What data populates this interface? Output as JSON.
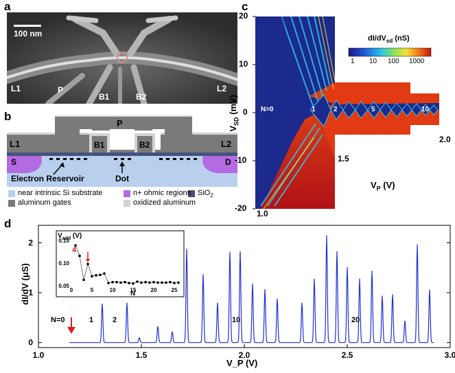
{
  "panels": {
    "a": "a",
    "b": "b",
    "c": "c",
    "d": "d"
  },
  "panel_a": {
    "scalebar": "100 nm",
    "labels": {
      "L1": "L1",
      "P": "P",
      "B1": "B1",
      "B2": "B2",
      "L2": "L2"
    }
  },
  "panel_b": {
    "gates": {
      "P": "P",
      "L1": "L1",
      "L2": "L2",
      "B1": "B1",
      "B2": "B2",
      "S": "S",
      "D": "D"
    },
    "reservoir": "Electron Reservoir",
    "dot": "Dot",
    "legend": [
      {
        "label": "near intrinsic Si substrate",
        "color": "#b8d0ee"
      },
      {
        "label": "n+ ohmic regions",
        "color": "#b36ae2"
      },
      {
        "label": "SiO",
        "sub": "2",
        "color": "#44527d"
      },
      {
        "label": "aluminum  gates",
        "color": "#7a7a7a"
      },
      {
        "label": "oxidized aluminum",
        "color": "#d3d3d3"
      }
    ]
  },
  "panel_c": {
    "ylabel": "V",
    "ylabel_sub": "SD",
    "ylabel_unit": " (mV)",
    "xlabel": "V",
    "xlabel_sub": "P",
    "xlabel_unit": " (V)",
    "yticks": [
      "20",
      "10",
      "0",
      "-10",
      "-20"
    ],
    "corner_labels": {
      "v1": "1.0",
      "v15": "1.5",
      "v2": "2.0"
    },
    "diamond_labels": [
      "N=0",
      "1",
      "2",
      "5",
      "10"
    ],
    "colorbar": {
      "title_prefix": "dI/dV",
      "title_sub": "sd",
      "title_unit": " (nS)",
      "ticks": [
        "1",
        "10",
        "100",
        "1000"
      ]
    }
  },
  "chart_data": {
    "type": "line",
    "title": "",
    "xlabel": "V_P (V)",
    "ylabel": "dI/dV (μS)",
    "xlim": [
      1.0,
      3.0
    ],
    "ylim": [
      -0.1,
      2.35
    ],
    "xticks": [
      "1.0",
      "1.5",
      "2.0",
      "2.5",
      "3.0"
    ],
    "yticks": [
      "0",
      "1",
      "2"
    ],
    "peak_x": [
      1.31,
      1.43,
      1.49,
      1.58,
      1.65,
      1.72,
      1.8,
      1.87,
      1.93,
      1.98,
      2.04,
      2.1,
      2.16,
      2.28,
      2.34,
      2.4,
      2.45,
      2.5,
      2.56,
      2.62,
      2.67,
      2.72,
      2.78,
      2.84,
      2.9
    ],
    "peak_y": [
      0.78,
      0.8,
      0.1,
      0.33,
      0.22,
      1.88,
      1.37,
      0.8,
      1.82,
      1.83,
      1.18,
      1.07,
      0.88,
      0.8,
      1.28,
      2.15,
      1.83,
      1.51,
      1.28,
      1.44,
      0.94,
      0.97,
      0.44,
      1.97,
      1.06
    ],
    "annotations": {
      "n0": "N=0",
      "n1": "1",
      "n2": "2",
      "n10": "10",
      "n20": "20"
    },
    "inset": {
      "ylabel": "V",
      "ylabel_sub": "add",
      "ylabel_unit": " (V)",
      "xlabel": "N",
      "xlim": [
        0,
        26
      ],
      "ylim": [
        0.05,
        0.15
      ],
      "xticks": [
        "0",
        "5",
        "10",
        "15",
        "20",
        "25"
      ],
      "yticks": [
        "0.05",
        "0.10",
        "0.15"
      ],
      "arrow_label": "4",
      "N": [
        1,
        2,
        3,
        4,
        5,
        6,
        7,
        8,
        9,
        10,
        11,
        12,
        13,
        14,
        15,
        16,
        17,
        18,
        19,
        20,
        21,
        22,
        23,
        24,
        25,
        26
      ],
      "V": [
        0.139,
        0.116,
        0.063,
        0.098,
        0.071,
        0.073,
        0.074,
        0.077,
        0.056,
        0.058,
        0.058,
        0.057,
        0.058,
        0.056,
        0.055,
        0.059,
        0.057,
        0.058,
        0.057,
        0.058,
        0.057,
        0.057,
        0.057,
        0.058,
        0.056,
        0.057
      ]
    }
  }
}
